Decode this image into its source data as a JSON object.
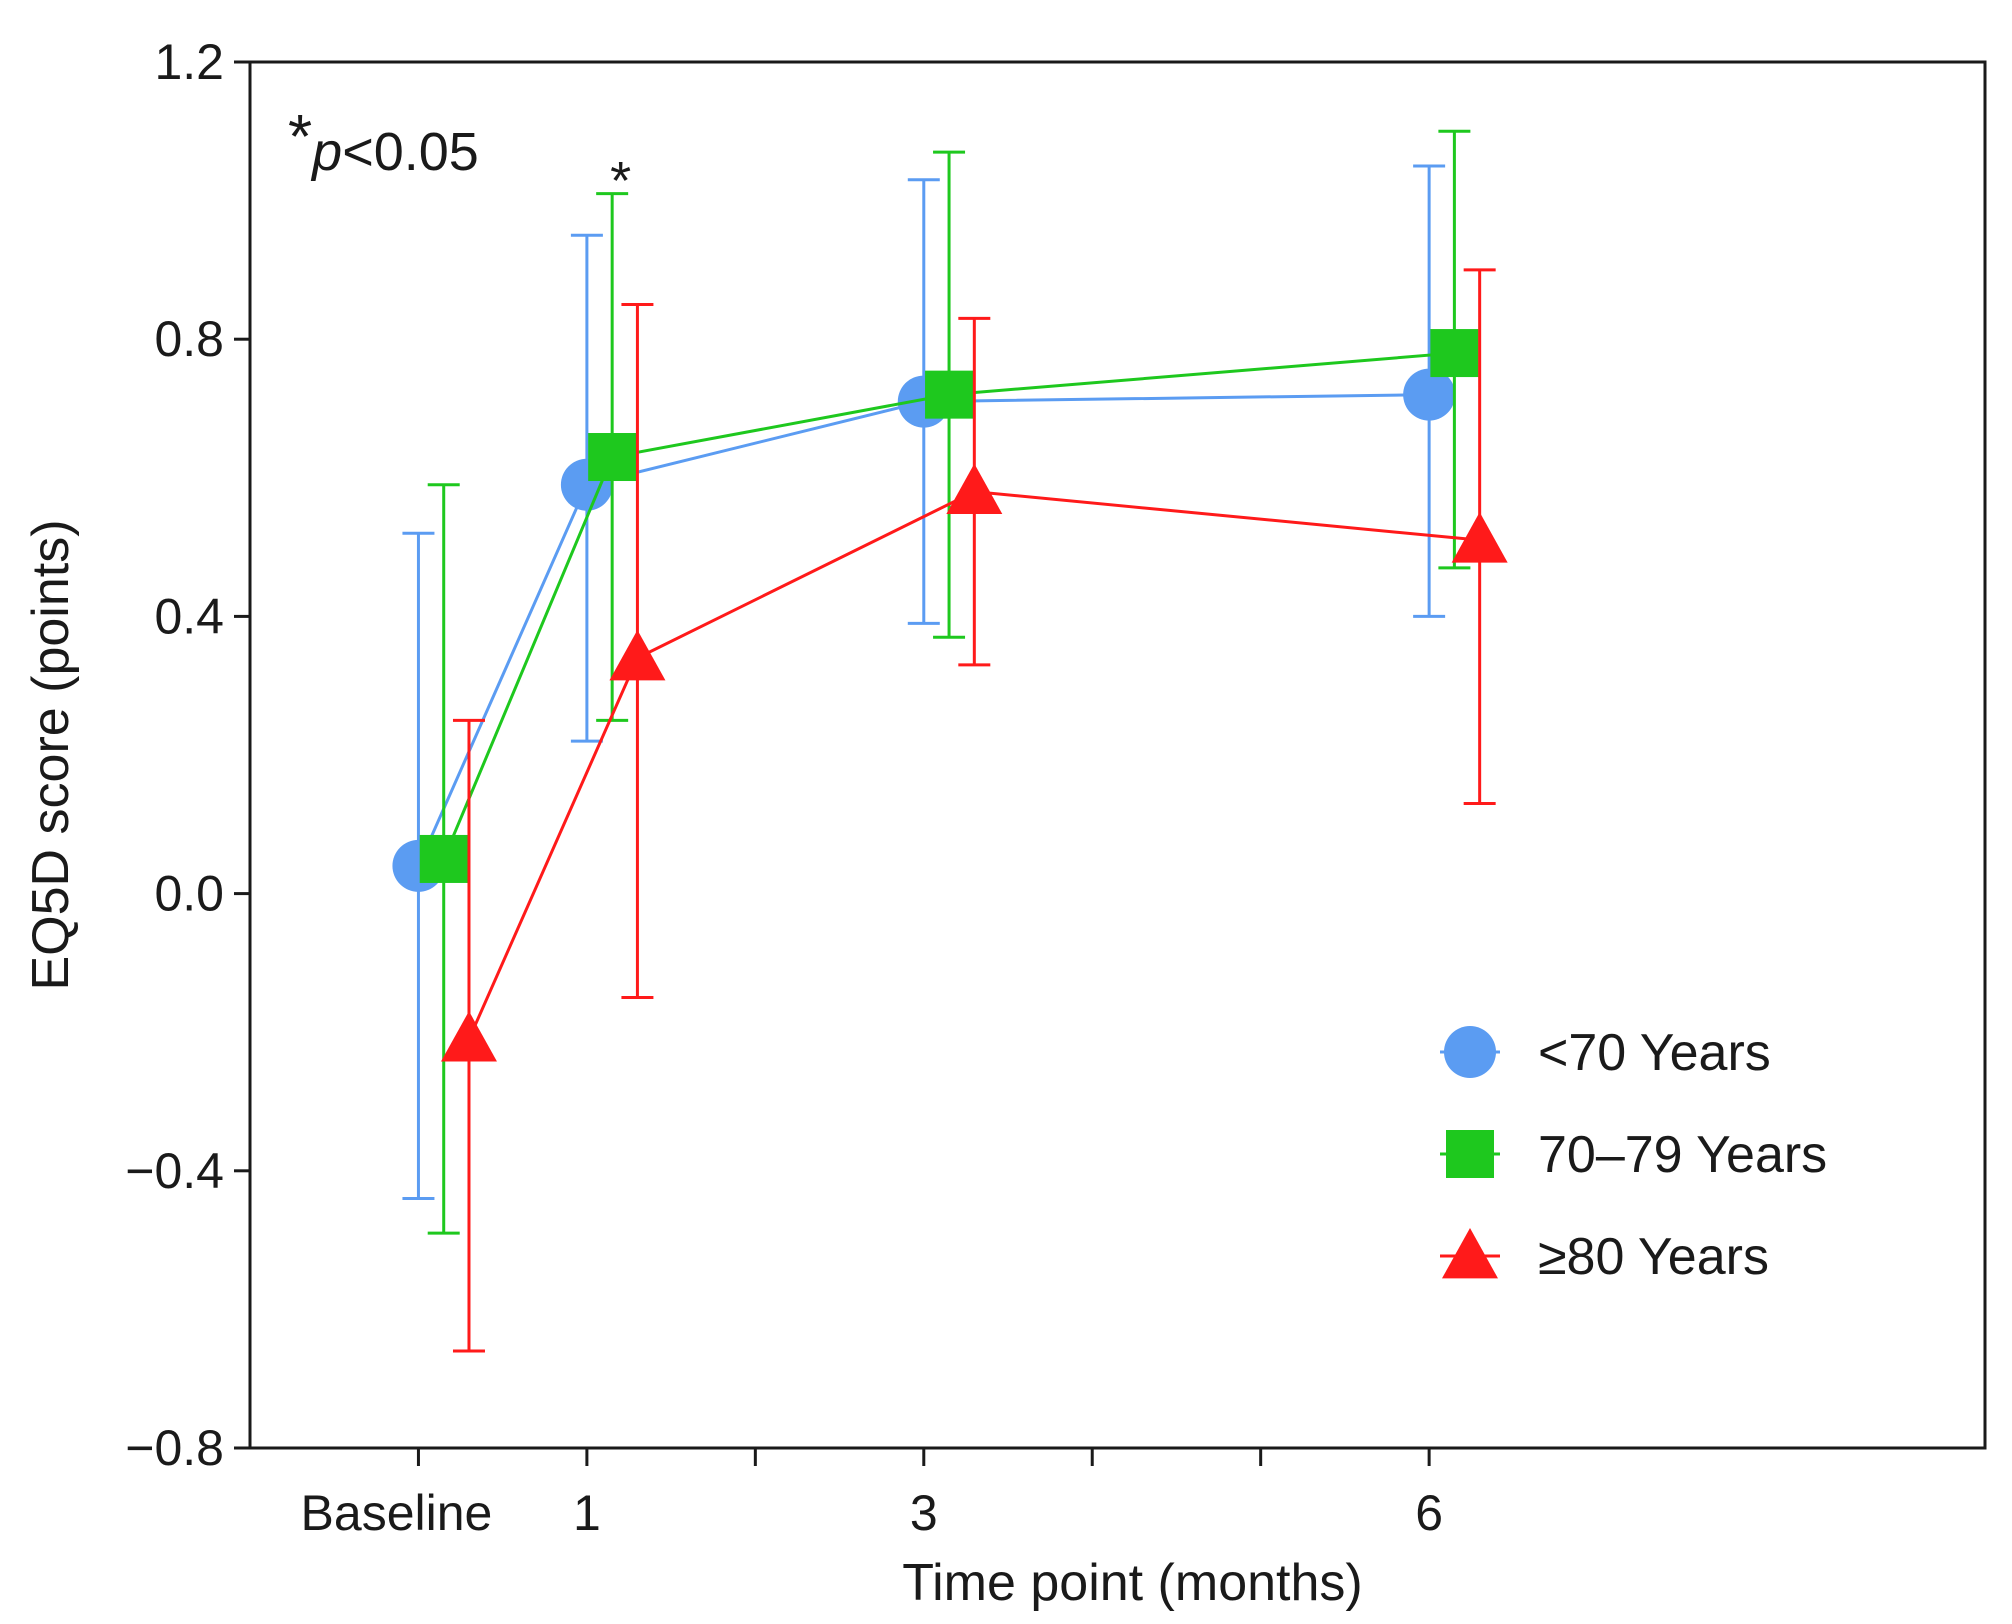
{
  "chart_data": {
    "type": "line",
    "title": "",
    "xlabel": "Time point (months)",
    "ylabel": "EQ5D score (points)",
    "categories": [
      "Baseline",
      "1",
      "3",
      "6"
    ],
    "x_positions_months": [
      0,
      1,
      3,
      6
    ],
    "minor_ticks_months": [
      2,
      4,
      5
    ],
    "ylim": [
      -0.8,
      1.2
    ],
    "yticks": [
      -0.8,
      -0.4,
      0.0,
      0.4,
      0.8,
      1.2
    ],
    "ytick_labels": [
      "−0.8",
      "−0.4",
      "0.0",
      "0.4",
      "0.8",
      "1.2"
    ],
    "grid": false,
    "legend_position": "bottom-right",
    "series": [
      {
        "name": "<70 Years",
        "marker": "circle",
        "color": "#5b9cf2",
        "offset_months": 0.0,
        "values": [
          0.04,
          0.59,
          0.71,
          0.72
        ],
        "error_low": [
          -0.44,
          0.22,
          0.39,
          0.4
        ],
        "error_high": [
          0.52,
          0.95,
          1.03,
          1.05
        ]
      },
      {
        "name": "70–79 Years",
        "marker": "square",
        "color": "#1ec81e",
        "offset_months": 0.15,
        "values": [
          0.05,
          0.63,
          0.72,
          0.78
        ],
        "error_low": [
          -0.49,
          0.25,
          0.37,
          0.47
        ],
        "error_high": [
          0.59,
          1.01,
          1.07,
          1.1
        ]
      },
      {
        "name": "≥80 Years",
        "marker": "triangle",
        "color": "#ff1a1a",
        "offset_months": 0.3,
        "values": [
          -0.21,
          0.34,
          0.58,
          0.51
        ],
        "error_low": [
          -0.66,
          -0.15,
          0.33,
          0.13
        ],
        "error_high": [
          0.25,
          0.85,
          0.83,
          0.9
        ]
      }
    ],
    "annotations": [
      {
        "text": "*",
        "italic_text": "p",
        "suffix": "<0.05",
        "role": "significance-key"
      },
      {
        "text": "*",
        "at_month": 1.2,
        "at_value": 1.06,
        "role": "significance-marker"
      }
    ]
  }
}
